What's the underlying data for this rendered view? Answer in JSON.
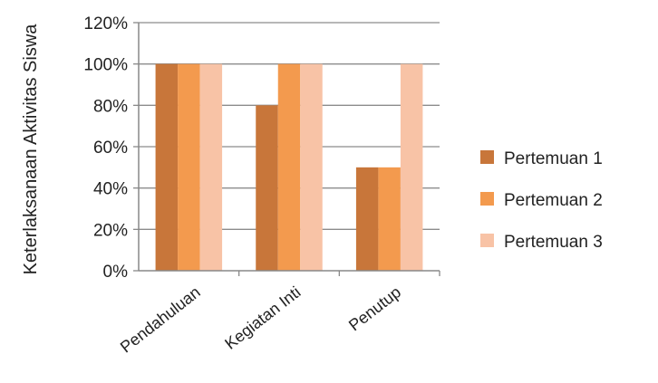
{
  "chart_data": {
    "type": "bar",
    "categories": [
      "Pendahuluan",
      "Kegiatan Inti",
      "Penutup"
    ],
    "series": [
      {
        "name": "Pertemuan 1",
        "values": [
          100,
          80,
          50
        ],
        "color": "#c8763a"
      },
      {
        "name": "Pertemuan 2",
        "values": [
          100,
          100,
          50
        ],
        "color": "#f39a4e"
      },
      {
        "name": "Pertemuan 3",
        "values": [
          100,
          100,
          100
        ],
        "color": "#f8c3a6"
      }
    ],
    "title": "",
    "xlabel": "",
    "ylabel": "Keterlaksanaan Aktivitas Siswa",
    "ylim": [
      0,
      120
    ],
    "yticks": [
      0,
      20,
      40,
      60,
      80,
      100,
      120
    ],
    "ytick_labels": [
      "0%",
      "20%",
      "40%",
      "60%",
      "80%",
      "100%",
      "120%"
    ],
    "grid": true,
    "legend_position": "right"
  }
}
